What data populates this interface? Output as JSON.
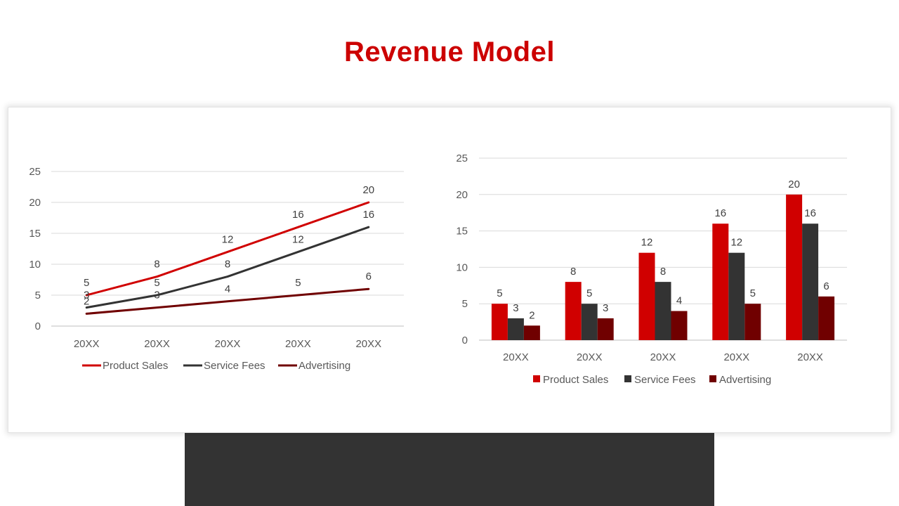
{
  "slide": {
    "title": "Revenue Model"
  },
  "colors": {
    "title": "#cc0000",
    "product": "#d00000",
    "service": "#333333",
    "advertising": "#700000"
  },
  "chart_data": [
    {
      "type": "line",
      "categories": [
        "20XX",
        "20XX",
        "20XX",
        "20XX",
        "20XX"
      ],
      "series": [
        {
          "name": "Product Sales",
          "values": [
            5,
            8,
            12,
            16,
            20
          ]
        },
        {
          "name": "Service Fees",
          "values": [
            3,
            5,
            8,
            12,
            16
          ]
        },
        {
          "name": "Advertising",
          "values": [
            2,
            3,
            4,
            5,
            6
          ]
        }
      ],
      "yticks": [
        0,
        5,
        10,
        15,
        20,
        25
      ],
      "ylim": [
        0,
        25
      ],
      "grid": true,
      "legend": "bottom"
    },
    {
      "type": "bar",
      "categories": [
        "20XX",
        "20XX",
        "20XX",
        "20XX",
        "20XX"
      ],
      "series": [
        {
          "name": "Product Sales",
          "values": [
            5,
            8,
            12,
            16,
            20
          ]
        },
        {
          "name": "Service Fees",
          "values": [
            3,
            5,
            8,
            12,
            16
          ]
        },
        {
          "name": "Advertising",
          "values": [
            2,
            3,
            4,
            5,
            6
          ]
        }
      ],
      "yticks": [
        0,
        5,
        10,
        15,
        20,
        25
      ],
      "ylim": [
        0,
        25
      ],
      "grid": true,
      "legend": "bottom"
    }
  ]
}
